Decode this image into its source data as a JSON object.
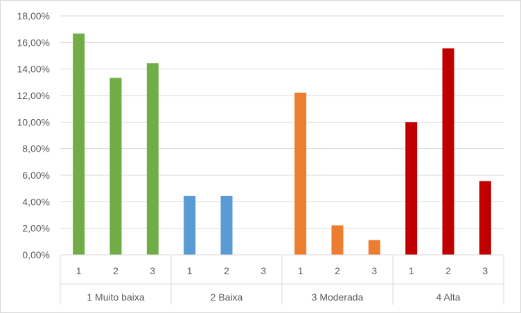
{
  "chart_data": {
    "type": "bar",
    "title": "",
    "xlabel": "",
    "ylabel": "",
    "ylim": [
      0,
      18
    ],
    "y_ticks": [
      "0,00%",
      "2,00%",
      "4,00%",
      "6,00%",
      "8,00%",
      "10,00%",
      "12,00%",
      "14,00%",
      "16,00%",
      "18,00%"
    ],
    "grid": true,
    "legend": "none",
    "groups": [
      {
        "label": "1 Muito baixa",
        "color": "#70ad47",
        "categories": [
          "1",
          "2",
          "3"
        ],
        "values": [
          16.67,
          13.33,
          14.44
        ]
      },
      {
        "label": "2 Baixa",
        "color": "#5b9bd5",
        "categories": [
          "1",
          "2",
          "3"
        ],
        "values": [
          4.44,
          4.44,
          0
        ]
      },
      {
        "label": "3 Moderada",
        "color": "#ed7d31",
        "categories": [
          "1",
          "2",
          "3"
        ],
        "values": [
          12.22,
          2.22,
          1.11
        ]
      },
      {
        "label": "4 Alta",
        "color": "#c00000",
        "categories": [
          "1",
          "2",
          "3"
        ],
        "values": [
          10.0,
          15.56,
          5.56
        ]
      }
    ]
  }
}
